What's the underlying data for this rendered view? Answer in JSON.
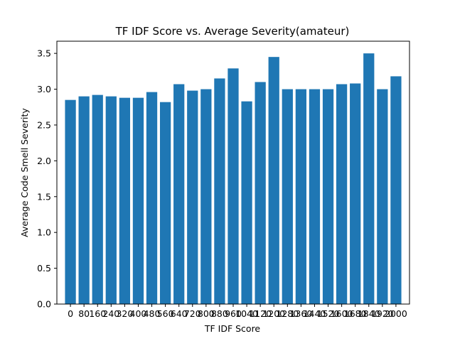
{
  "chart_data": {
    "type": "bar",
    "title": "TF IDF Score vs. Average Severity(amateur)",
    "xlabel": "TF IDF Score",
    "ylabel": "Average Code Smell Severity",
    "x": [
      0,
      80,
      160,
      240,
      320,
      400,
      480,
      560,
      640,
      720,
      800,
      880,
      960,
      1040,
      1120,
      1200,
      1280,
      1360,
      1440,
      1520,
      1600,
      1680,
      1840,
      1920,
      2000
    ],
    "x_tick_labels": [
      "0",
      "80",
      "160",
      "240",
      "320",
      "400",
      "480",
      "560",
      "640",
      "720",
      "800",
      "880",
      "960",
      "1040",
      "1120",
      "1200",
      "1280",
      "1360",
      "1440",
      "1520",
      "1600",
      "1680",
      "1840",
      "1920",
      "2000"
    ],
    "values": [
      2.85,
      2.9,
      2.92,
      2.9,
      2.88,
      2.88,
      2.96,
      2.82,
      3.07,
      2.98,
      3.0,
      3.15,
      3.29,
      2.83,
      3.1,
      3.45,
      3.0,
      3.0,
      3.0,
      3.0,
      3.07,
      3.08,
      3.5,
      3.0,
      3.18
    ],
    "ylim": [
      0,
      3.67
    ],
    "y_ticks": [
      "0.0",
      "0.5",
      "1.0",
      "1.5",
      "2.0",
      "2.5",
      "3.0",
      "3.5"
    ],
    "grid": false,
    "bar_color": "#1f77b4"
  }
}
